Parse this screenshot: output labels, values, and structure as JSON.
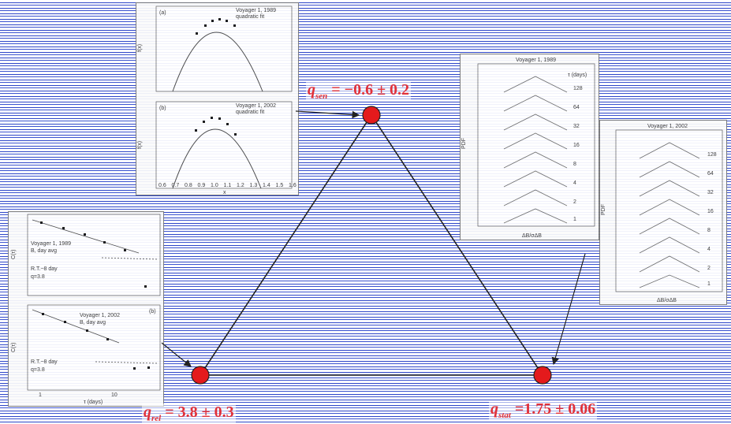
{
  "top_left_plots": {
    "panel_a": {
      "tag": "(a)",
      "legend_marker": "Voyager 1, 1989",
      "legend_line": "quadratic fit",
      "ylabel": "f(x)"
    },
    "panel_b": {
      "tag": "(b)",
      "legend_marker": "Voyager 1, 2002",
      "legend_line": "quadratic fit",
      "ylabel": "f(x)",
      "xlabel": "x",
      "x_ticks": [
        "0.6",
        "0.7",
        "0.8",
        "0.9",
        "1.0",
        "1.1",
        "1.2",
        "1.3",
        "1.4",
        "1.5",
        "1.6"
      ]
    }
  },
  "bottom_left_plots": {
    "panel_a": {
      "title": "Voyager 1, 1989",
      "subtitle": "B, day avg",
      "ylabel": "C(τ)",
      "note1": "R.T.~8 day",
      "note2": "q=3.8"
    },
    "panel_b": {
      "tag": "(b)",
      "title": "Voyager 1, 2002",
      "subtitle": "B, day avg",
      "ylabel": "C(τ)",
      "note1": "R.T.~8 day",
      "note2": "q=3.8",
      "xlabel": "τ (days)",
      "x_ticks": [
        "1",
        "10"
      ]
    }
  },
  "right_plots": {
    "upper": {
      "title": "Voyager 1, 1989",
      "legend_header": "τ (days)",
      "legend_values": [
        "128",
        "64",
        "32",
        "16",
        "8",
        "4",
        "2",
        "1"
      ],
      "xlabel": "ΔB/σΔB",
      "ylabel": "PDF"
    },
    "lower": {
      "title": "Voyager 1, 2002",
      "legend_values": [
        "128",
        "64",
        "32",
        "16",
        "8",
        "4",
        "2",
        "1"
      ],
      "xlabel": "ΔB/σΔB",
      "ylabel": "PDF"
    }
  },
  "triangle": {
    "apex": {
      "q_symbol": "q",
      "subscript": "sen",
      "value": "= −0.6 ± 0.2"
    },
    "left": {
      "q_symbol": "q",
      "subscript": "rel",
      "value": "= 3.8 ± 0.3"
    },
    "right": {
      "q_symbol": "q",
      "subscript": "stat",
      "value": "=1.75 ± 0.06"
    },
    "node_color": "#e41a1c",
    "line_color": "#222222"
  }
}
